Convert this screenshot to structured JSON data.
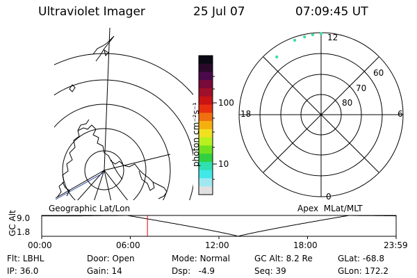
{
  "header": {
    "instrument": "Ultraviolet Imager",
    "date": "25 Jul 07",
    "time": "07:09:45 UT"
  },
  "colorbar": {
    "unit_label": "photon cm⁻²s⁻¹",
    "tick_labels": [
      "100",
      "10"
    ],
    "colors": [
      "#0a0a14",
      "#2a0a2a",
      "#4a0a4a",
      "#7a0a3a",
      "#a0102a",
      "#c81414",
      "#e83010",
      "#f07010",
      "#f5b010",
      "#f0e020",
      "#b8f020",
      "#70e020",
      "#30d040",
      "#30e0b0",
      "#40e8e8",
      "#a0e8f0",
      "#e0e0e0"
    ]
  },
  "geo_map": {
    "label": "Geographic Lat/Lon"
  },
  "polar_plot": {
    "label": "Apex  MLat/MLT",
    "mlt_labels": {
      "top": "12",
      "left": "18",
      "right": "6",
      "bottom": "0"
    },
    "lat_labels": [
      "60",
      "70",
      "80"
    ],
    "points_color": "#40e0a0",
    "points": [
      {
        "mlt": 12.0,
        "mlat": 50.5
      },
      {
        "mlt": 12.4,
        "mlat": 50.8
      },
      {
        "mlt": 12.8,
        "mlat": 51.2
      },
      {
        "mlt": 13.3,
        "mlat": 51.5
      },
      {
        "mlt": 14.5,
        "mlat": 54.5
      }
    ]
  },
  "timeline": {
    "axis_label": "GC Alt",
    "ytick_labels": [
      "9.0",
      "1.8"
    ],
    "ylim": [
      1.8,
      9.0
    ],
    "xtick_labels": [
      "00:00",
      "06:00",
      "12:00",
      "18:00",
      "23:59"
    ],
    "marker_hour": 7.16,
    "marker_color": "#e00000",
    "perigee_hour": 13.3,
    "altitude_max": 9.0,
    "altitude_min": 1.8
  },
  "status": {
    "row1": [
      {
        "key": "Flt:",
        "value": "LBHL"
      },
      {
        "key": "Door:",
        "value": "Open"
      },
      {
        "key": "Mode:",
        "value": "Normal"
      },
      {
        "key": "GC Alt:",
        "value": "8.2 Re"
      },
      {
        "key": "GLat:",
        "value": "-68.8"
      }
    ],
    "row2": [
      {
        "key": "IP:",
        "value": "36.0"
      },
      {
        "key": "Gain:",
        "value": "14"
      },
      {
        "key": "Dsp:",
        "value": "  -4.9"
      },
      {
        "key": "Seq:",
        "value": "39"
      },
      {
        "key": "GLon:",
        "value": "172.2"
      }
    ]
  }
}
